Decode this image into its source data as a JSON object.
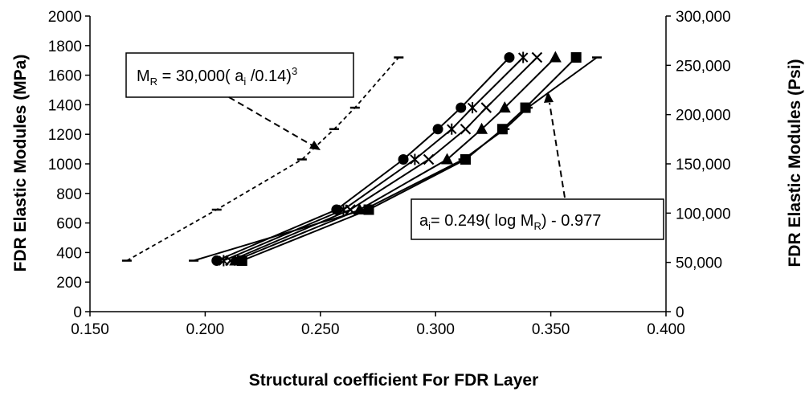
{
  "chart_data": {
    "type": "line",
    "xlabel": "Structural coefficient  For FDR Layer",
    "ylabel": "FDR Elastic Modules (MPa)",
    "y2label": "FDR Elastic Modules (Psi)",
    "xlim": [
      0.15,
      0.4
    ],
    "ylim": [
      0,
      2000
    ],
    "y2lim": [
      0,
      300000
    ],
    "x_ticks": [
      "0.150",
      "0.200",
      "0.250",
      "0.300",
      "0.350",
      "0.400"
    ],
    "y_ticks": [
      "0",
      "200",
      "400",
      "600",
      "800",
      "1000",
      "1200",
      "1400",
      "1600",
      "1800",
      "2000"
    ],
    "y2_ticks": [
      "0",
      "50,000",
      "100,000",
      "150,000",
      "200,000",
      "250,000",
      "300,000"
    ],
    "grid": false,
    "series": [
      {
        "marker": "dash",
        "line": "dashed",
        "x": [
          0.166,
          0.205,
          0.242,
          0.256,
          0.265,
          0.284
        ],
        "y": [
          345,
          690,
          1030,
          1235,
          1380,
          1720
        ]
      },
      {
        "marker": "dash",
        "line": "solid",
        "x": [
          0.195,
          0.269,
          0.312,
          0.33,
          0.34,
          0.37
        ],
        "y": [
          345,
          690,
          1030,
          1235,
          1380,
          1720
        ]
      },
      {
        "marker": "circle",
        "line": "solid",
        "x": [
          0.205,
          0.257,
          0.286,
          0.301,
          0.311,
          0.332
        ],
        "y": [
          345,
          690,
          1030,
          1235,
          1380,
          1720
        ]
      },
      {
        "marker": "star",
        "line": "solid",
        "x": [
          0.208,
          0.26,
          0.291,
          0.307,
          0.316,
          0.338
        ],
        "y": [
          345,
          690,
          1030,
          1235,
          1380,
          1720
        ]
      },
      {
        "marker": "x",
        "line": "solid",
        "x": [
          0.211,
          0.263,
          0.297,
          0.313,
          0.322,
          0.344
        ],
        "y": [
          345,
          690,
          1030,
          1235,
          1380,
          1720
        ]
      },
      {
        "marker": "triangle",
        "line": "solid",
        "x": [
          0.213,
          0.267,
          0.305,
          0.32,
          0.33,
          0.352
        ],
        "y": [
          345,
          690,
          1030,
          1235,
          1380,
          1720
        ]
      },
      {
        "marker": "square",
        "line": "solid",
        "x": [
          0.216,
          0.271,
          0.313,
          0.329,
          0.339,
          0.361
        ],
        "y": [
          345,
          690,
          1030,
          1235,
          1380,
          1720
        ]
      }
    ],
    "annotations": [
      {
        "parts": [
          "M",
          "R",
          " = 30,000( a",
          "i",
          " /0.14)",
          "3"
        ]
      },
      {
        "parts": [
          "a",
          "i",
          "= 0.249( log M",
          "R",
          ") - 0.977"
        ]
      }
    ]
  },
  "colors": {
    "line": "#000000",
    "background": "#ffffff"
  }
}
